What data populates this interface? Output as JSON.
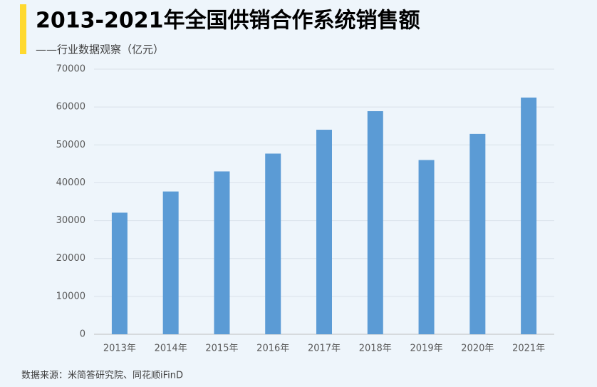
{
  "chart_data": {
    "type": "bar",
    "title": "2013-2021年全国供销合作系统销售额",
    "subtitle": "——行业数据观察（亿元）",
    "source": "数据来源：米简答研究院、同花顺iFinD",
    "categories": [
      "2013年",
      "2014年",
      "2015年",
      "2016年",
      "2017年",
      "2018年",
      "2019年",
      "2020年",
      "2021年"
    ],
    "values": [
      32100,
      37700,
      43000,
      47700,
      54000,
      58900,
      46000,
      52900,
      62500
    ],
    "color": "#5b9bd5",
    "ylim": [
      0,
      70000
    ],
    "yticks": [
      0,
      10000,
      20000,
      30000,
      40000,
      50000,
      60000,
      70000
    ],
    "grid": true
  }
}
